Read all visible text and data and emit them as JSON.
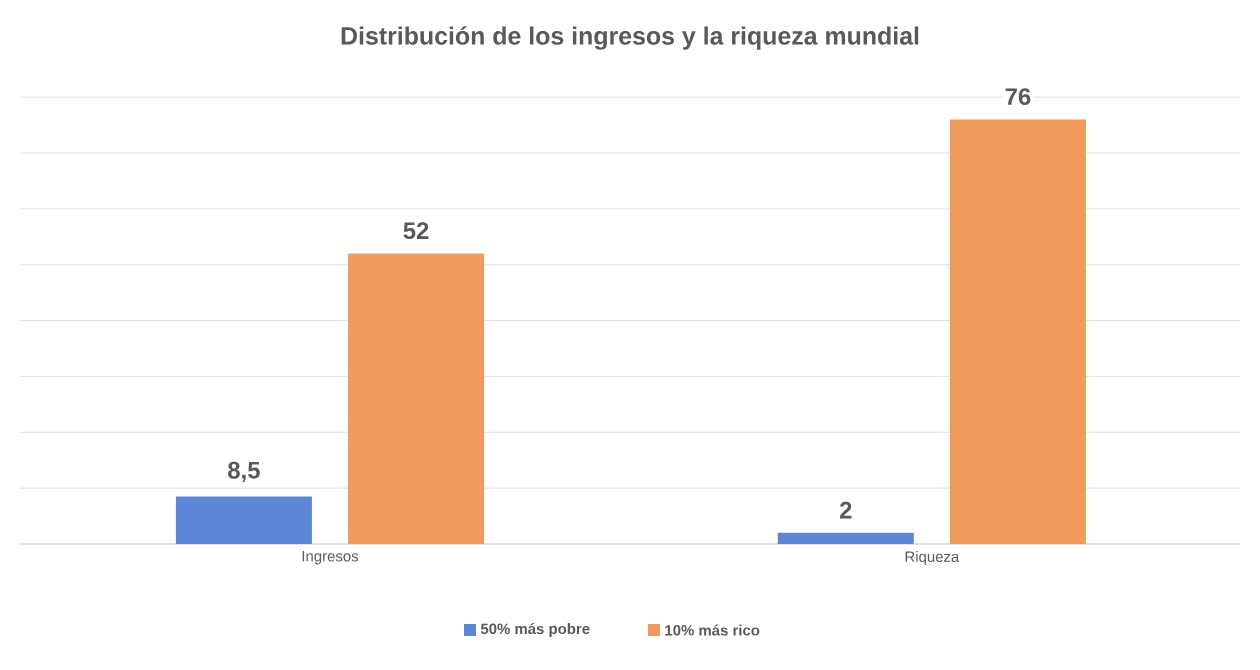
{
  "chart_data": {
    "type": "bar",
    "title": "Distribución de los ingresos y la riqueza mundial",
    "categories": [
      "Ingresos",
      "Riqueza"
    ],
    "series": [
      {
        "name": "50% más pobre",
        "color": "#5f86d6",
        "values": [
          8.5,
          2
        ],
        "value_labels": [
          "8,5",
          "2"
        ]
      },
      {
        "name": "10% más rico",
        "color": "#f09a5c",
        "values": [
          52,
          76
        ],
        "value_labels": [
          "52",
          "76"
        ]
      }
    ],
    "tick_labels": "x",
    "grid": "y",
    "legend": "bottom"
  }
}
